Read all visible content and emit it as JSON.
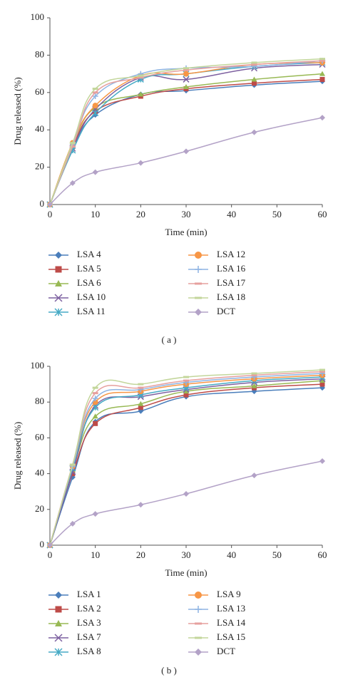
{
  "chart_data": [
    {
      "type": "line",
      "caption": "( a )",
      "x_label": "Time (min)",
      "y_label": "Drug released (%)",
      "x": [
        0,
        5,
        10,
        20,
        30,
        45,
        60
      ],
      "xlim": [
        0,
        60
      ],
      "xticks": [
        0,
        10,
        20,
        30,
        40,
        50,
        60
      ],
      "ylim": [
        0,
        100
      ],
      "yticks": [
        0,
        20,
        40,
        60,
        80,
        100
      ],
      "series": [
        {
          "name": "LSA 4",
          "color": "#4a7ebb",
          "marker": "diamond",
          "values": [
            0,
            30,
            48,
            59,
            61,
            64,
            66
          ]
        },
        {
          "name": "LSA 5",
          "color": "#be4b48",
          "marker": "square",
          "values": [
            0,
            31,
            50,
            58,
            62,
            65,
            67
          ]
        },
        {
          "name": "LSA 6",
          "color": "#98b954",
          "marker": "triangle",
          "values": [
            0,
            32,
            52,
            59,
            63,
            67,
            70
          ]
        },
        {
          "name": "LSA 10",
          "color": "#7d60a0",
          "marker": "x",
          "values": [
            0,
            30,
            51,
            68,
            67,
            73,
            75
          ]
        },
        {
          "name": "LSA 11",
          "color": "#46aac5",
          "marker": "star",
          "values": [
            0,
            29,
            49,
            67,
            70,
            74,
            76
          ]
        },
        {
          "name": "LSA 12",
          "color": "#f79646",
          "marker": "circle",
          "values": [
            0,
            33,
            53,
            69,
            70,
            75,
            76
          ]
        },
        {
          "name": "LSA 16",
          "color": "#8eb4e3",
          "marker": "plus",
          "values": [
            0,
            32,
            58,
            70,
            73,
            74,
            77
          ]
        },
        {
          "name": "LSA 17",
          "color": "#e6a09e",
          "marker": "dash",
          "values": [
            0,
            31,
            60,
            68,
            72,
            75,
            77
          ]
        },
        {
          "name": "LSA 18",
          "color": "#c3d69b",
          "marker": "dash",
          "values": [
            0,
            33,
            62,
            69,
            73,
            76,
            78
          ]
        },
        {
          "name": "DCT",
          "color": "#b3a2c7",
          "marker": "diamond",
          "values": [
            0,
            11.5,
            17.3,
            22.3,
            28.5,
            38.7,
            46.5
          ]
        }
      ]
    },
    {
      "type": "line",
      "caption": "( b )",
      "x_label": "Time (min)",
      "y_label": "Drug released (%)",
      "x": [
        0,
        5,
        10,
        20,
        30,
        45,
        60
      ],
      "xlim": [
        0,
        60
      ],
      "xticks": [
        0,
        10,
        20,
        30,
        40,
        50,
        60
      ],
      "ylim": [
        0,
        100
      ],
      "yticks": [
        0,
        20,
        40,
        60,
        80,
        100
      ],
      "series": [
        {
          "name": "LSA 1",
          "color": "#4a7ebb",
          "marker": "diamond",
          "values": [
            0,
            38,
            69,
            75,
            83,
            86,
            88
          ]
        },
        {
          "name": "LSA 2",
          "color": "#be4b48",
          "marker": "square",
          "values": [
            0,
            40,
            68,
            77,
            84,
            88,
            90
          ]
        },
        {
          "name": "LSA 3",
          "color": "#98b954",
          "marker": "triangle",
          "values": [
            0,
            42,
            72,
            79,
            86,
            89,
            92
          ]
        },
        {
          "name": "LSA 7",
          "color": "#7d60a0",
          "marker": "x",
          "values": [
            0,
            41,
            78,
            83,
            87,
            91,
            93
          ]
        },
        {
          "name": "LSA 8",
          "color": "#46aac5",
          "marker": "star",
          "values": [
            0,
            43,
            77,
            84,
            88,
            92,
            94
          ]
        },
        {
          "name": "LSA 9",
          "color": "#f79646",
          "marker": "circle",
          "values": [
            0,
            44,
            80,
            86,
            90,
            93,
            95
          ]
        },
        {
          "name": "LSA 13",
          "color": "#8eb4e3",
          "marker": "plus",
          "values": [
            0,
            44,
            82,
            87,
            91,
            94,
            96
          ]
        },
        {
          "name": "LSA 14",
          "color": "#e6a09e",
          "marker": "dash",
          "values": [
            0,
            45,
            85,
            88,
            92,
            95,
            97
          ]
        },
        {
          "name": "LSA 15",
          "color": "#c3d69b",
          "marker": "dash",
          "values": [
            0,
            45,
            88,
            90,
            94,
            96,
            98
          ]
        },
        {
          "name": "DCT",
          "color": "#b3a2c7",
          "marker": "diamond",
          "values": [
            0,
            12,
            17.5,
            22.6,
            28.7,
            39,
            47
          ]
        }
      ]
    }
  ]
}
